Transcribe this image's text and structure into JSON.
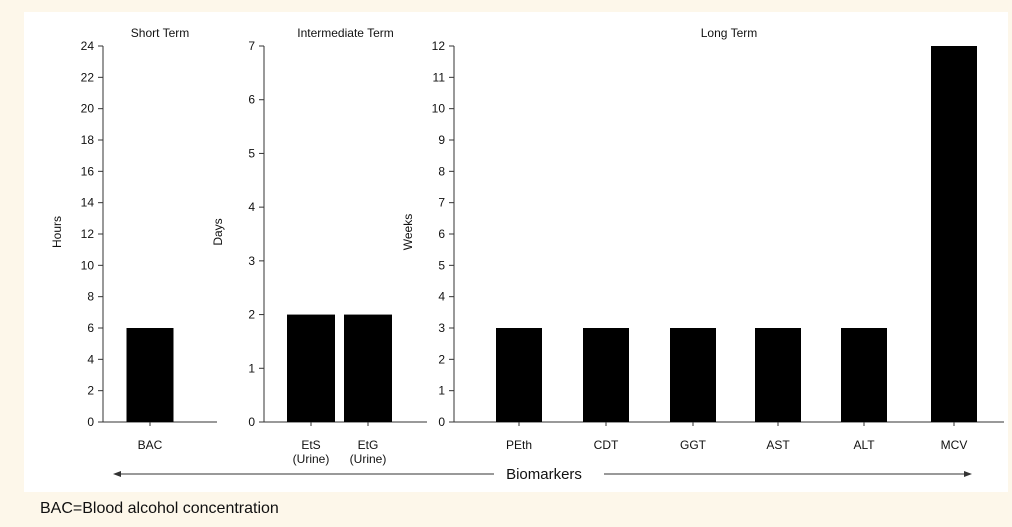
{
  "chart_data": [
    {
      "type": "bar",
      "title": "Short Term",
      "ylabel": "Hours",
      "categories": [
        "BAC"
      ],
      "values": [
        6
      ],
      "ylim": [
        0,
        24
      ],
      "yticks": [
        0,
        2,
        4,
        6,
        8,
        10,
        12,
        14,
        16,
        18,
        20,
        22,
        24
      ]
    },
    {
      "type": "bar",
      "title": "Intermediate Term",
      "ylabel": "Days",
      "categories": [
        [
          "EtS",
          "(Urine)"
        ],
        [
          "EtG",
          "(Urine)"
        ]
      ],
      "values": [
        2,
        2
      ],
      "ylim": [
        0,
        7
      ],
      "yticks": [
        0,
        1,
        2,
        3,
        4,
        5,
        6,
        7
      ]
    },
    {
      "type": "bar",
      "title": "Long Term",
      "ylabel": "Weeks",
      "categories": [
        "PEth",
        "CDT",
        "GGT",
        "AST",
        "ALT",
        "MCV"
      ],
      "values": [
        3,
        3,
        3,
        3,
        3,
        12
      ],
      "ylim": [
        0,
        12
      ],
      "yticks": [
        0,
        1,
        2,
        3,
        4,
        5,
        6,
        7,
        8,
        9,
        10,
        11,
        12
      ]
    }
  ],
  "xlabel": "Biomarkers",
  "footnote": "BAC=Blood alcohol concentration",
  "colors": {
    "bar": "#000000",
    "axis": "#333333",
    "background": "#fdf7ea",
    "panel": "#ffffff"
  }
}
